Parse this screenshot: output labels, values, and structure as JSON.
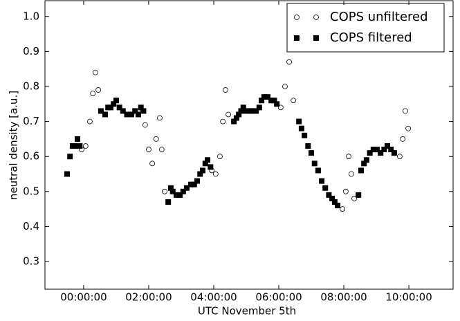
{
  "chart_data": {
    "type": "scatter",
    "xlabel": "UTC November 5th",
    "ylabel": "neutral density [a.u.]",
    "xlim": [
      -1.19,
      11.36
    ],
    "ylim": [
      0.221,
      1.045
    ],
    "xticks": [
      {
        "value": 0,
        "label": "00:00:00"
      },
      {
        "value": 2,
        "label": "02:00:00"
      },
      {
        "value": 4,
        "label": "04:00:00"
      },
      {
        "value": 6,
        "label": "06:00:00"
      },
      {
        "value": 8,
        "label": "08:00:00"
      },
      {
        "value": 10,
        "label": "10:00:00"
      }
    ],
    "yticks": [
      0.3,
      0.4,
      0.5,
      0.6,
      0.7,
      0.8,
      0.9,
      {
        "value": 1,
        "label": "1.0"
      }
    ],
    "legend": "upper right",
    "series": [
      {
        "name": "COPS unfiltered",
        "color": "#000000",
        "marker": "open-circle",
        "x": [
          -0.51,
          -0.34,
          -0.19,
          -0.06,
          0.06,
          0.19,
          0.28,
          0.36,
          0.45,
          0.53,
          0.66,
          0.83,
          1.0,
          1.21,
          1.47,
          1.68,
          1.81,
          1.89,
          2.0,
          2.11,
          2.23,
          2.34,
          2.4,
          2.49,
          2.6,
          2.74,
          2.96,
          3.17,
          3.49,
          3.66,
          3.81,
          3.94,
          4.06,
          4.19,
          4.28,
          4.36,
          4.45,
          4.62,
          4.77,
          4.91,
          5.19,
          5.4,
          5.55,
          5.77,
          5.94,
          6.06,
          6.19,
          6.32,
          6.45,
          6.62,
          6.79,
          7.0,
          7.21,
          7.43,
          7.64,
          7.81,
          7.96,
          8.06,
          8.15,
          8.23,
          8.32,
          8.45,
          8.53,
          8.7,
          8.91,
          9.13,
          9.34,
          9.55,
          9.72,
          9.81,
          9.89,
          9.98
        ],
        "values": [
          0.55,
          0.63,
          0.65,
          0.62,
          0.63,
          0.7,
          0.78,
          0.84,
          0.79,
          0.73,
          0.72,
          0.74,
          0.76,
          0.73,
          0.72,
          0.72,
          0.73,
          0.69,
          0.62,
          0.58,
          0.65,
          0.71,
          0.62,
          0.5,
          0.47,
          0.5,
          0.49,
          0.51,
          0.53,
          0.56,
          0.59,
          0.56,
          0.55,
          0.6,
          0.7,
          0.79,
          0.72,
          0.7,
          0.72,
          0.74,
          0.73,
          0.74,
          0.77,
          0.76,
          0.75,
          0.74,
          0.8,
          0.87,
          0.76,
          0.7,
          0.66,
          0.61,
          0.56,
          0.51,
          0.48,
          0.46,
          0.45,
          0.5,
          0.6,
          0.55,
          0.48,
          0.49,
          0.56,
          0.59,
          0.62,
          0.61,
          0.63,
          0.61,
          0.6,
          0.65,
          0.73,
          0.68
        ]
      },
      {
        "name": "COPS filtered",
        "color": "#000000",
        "marker": "square",
        "x": [
          -0.51,
          -0.42,
          -0.34,
          -0.27,
          -0.19,
          -0.12,
          0.53,
          0.66,
          0.75,
          0.83,
          0.92,
          1.0,
          1.1,
          1.21,
          1.33,
          1.47,
          1.58,
          1.68,
          1.76,
          1.84,
          2.6,
          2.68,
          2.74,
          2.85,
          2.96,
          3.06,
          3.17,
          3.3,
          3.4,
          3.49,
          3.58,
          3.66,
          3.74,
          3.81,
          3.9,
          4.62,
          4.7,
          4.77,
          4.84,
          4.91,
          5.0,
          5.1,
          5.19,
          5.3,
          5.4,
          5.47,
          5.55,
          5.66,
          5.77,
          5.86,
          5.94,
          6.62,
          6.7,
          6.79,
          6.9,
          7.0,
          7.1,
          7.21,
          7.32,
          7.43,
          7.54,
          7.64,
          7.72,
          7.81,
          8.45,
          8.53,
          8.62,
          8.7,
          8.8,
          8.91,
          9.02,
          9.13,
          9.24,
          9.34,
          9.45,
          9.55
        ],
        "values": [
          0.55,
          0.6,
          0.63,
          0.63,
          0.65,
          0.63,
          0.73,
          0.72,
          0.74,
          0.74,
          0.75,
          0.76,
          0.74,
          0.73,
          0.72,
          0.72,
          0.73,
          0.72,
          0.74,
          0.73,
          0.47,
          0.51,
          0.5,
          0.49,
          0.49,
          0.5,
          0.51,
          0.52,
          0.52,
          0.53,
          0.55,
          0.56,
          0.58,
          0.59,
          0.57,
          0.7,
          0.71,
          0.72,
          0.73,
          0.74,
          0.73,
          0.73,
          0.73,
          0.73,
          0.74,
          0.76,
          0.77,
          0.77,
          0.76,
          0.76,
          0.75,
          0.7,
          0.68,
          0.66,
          0.63,
          0.61,
          0.58,
          0.56,
          0.53,
          0.51,
          0.49,
          0.48,
          0.47,
          0.46,
          0.49,
          0.56,
          0.58,
          0.59,
          0.61,
          0.62,
          0.62,
          0.61,
          0.62,
          0.63,
          0.62,
          0.61
        ]
      }
    ]
  }
}
